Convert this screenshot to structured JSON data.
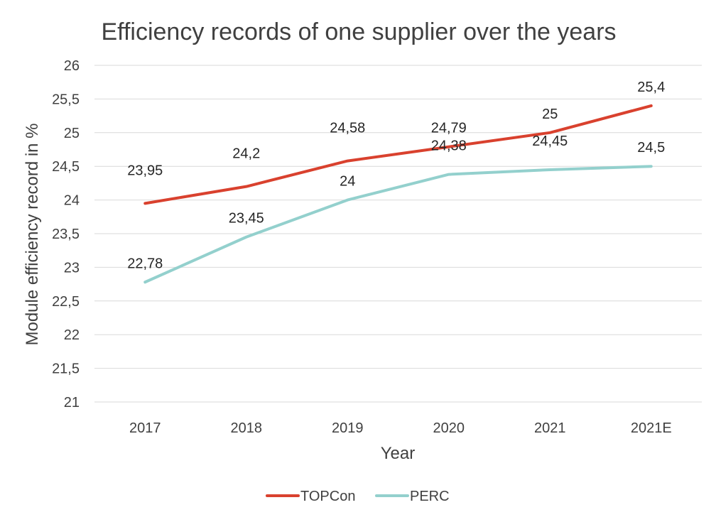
{
  "chart_data": {
    "type": "line",
    "title": "Efficiency records of one supplier over the years",
    "xlabel": "Year",
    "ylabel": "Module efficiency record in %",
    "categories": [
      "2017",
      "2018",
      "2019",
      "2020",
      "2021",
      "2021E"
    ],
    "ylim": [
      21,
      26
    ],
    "ytick_step": 0.5,
    "yticks": [
      "21",
      "21,5",
      "22",
      "22,5",
      "23",
      "23,5",
      "24",
      "24,5",
      "25",
      "25,5",
      "26"
    ],
    "grid": true,
    "legend_position": "bottom",
    "series": [
      {
        "name": "TOPCon",
        "color": "#d9412e",
        "values": [
          23.95,
          24.2,
          24.58,
          24.79,
          25.0,
          25.4
        ],
        "labels": [
          "23,95",
          "24,2",
          "24,58",
          "24,79",
          "25",
          "25,4"
        ]
      },
      {
        "name": "PERC",
        "color": "#93d0cd",
        "values": [
          22.78,
          23.45,
          24.0,
          24.38,
          24.45,
          24.5
        ],
        "labels": [
          "22,78",
          "23,45",
          "24",
          "24,38",
          "24,45",
          "24,5"
        ]
      }
    ]
  }
}
